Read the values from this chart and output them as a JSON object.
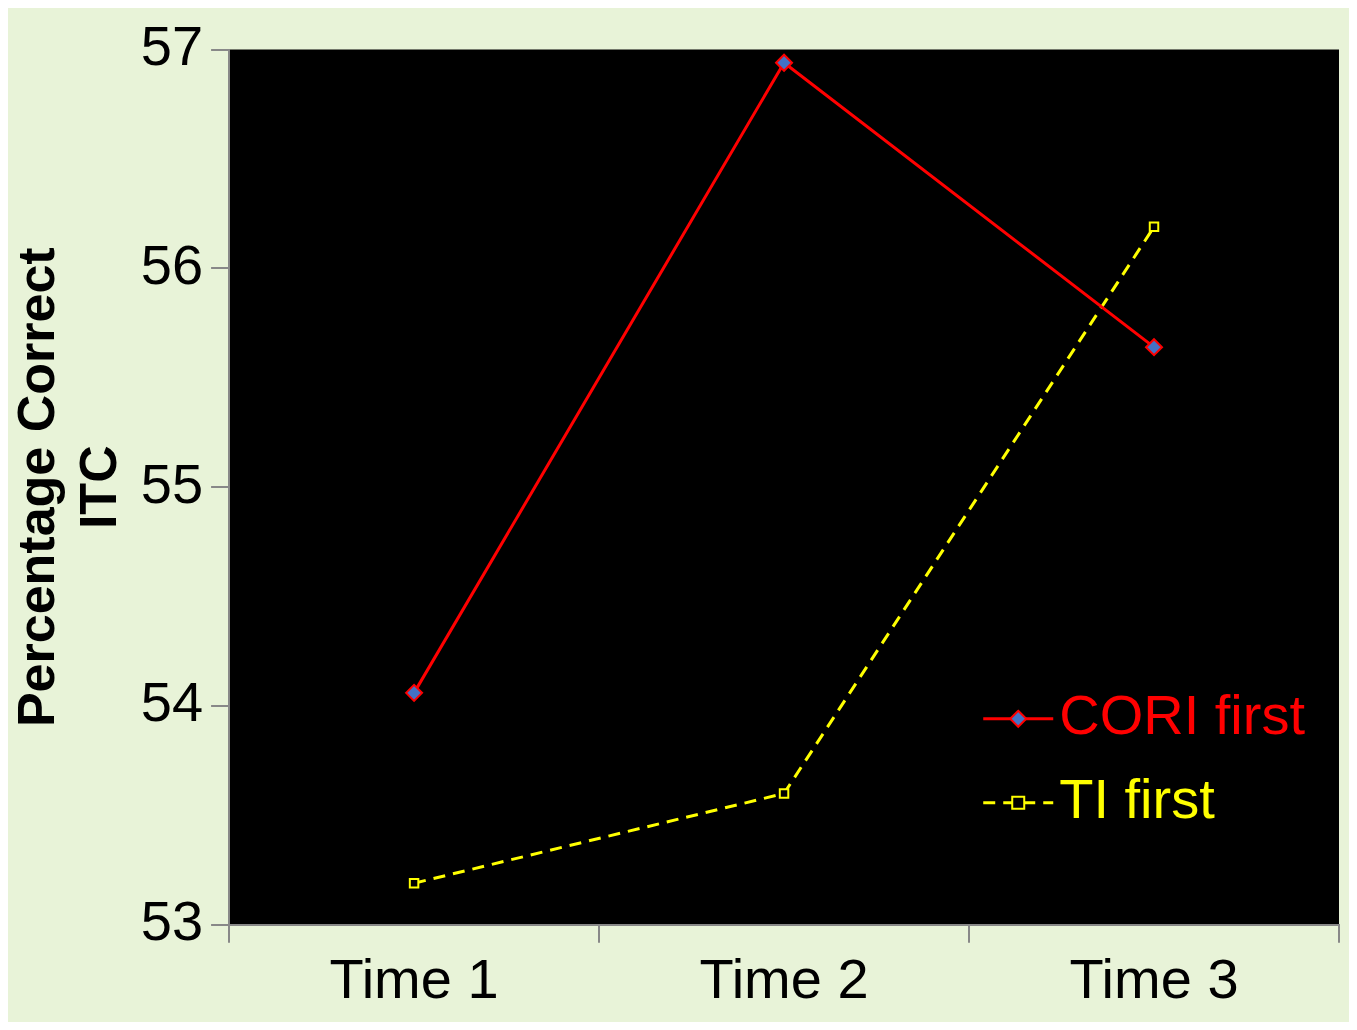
{
  "chart_data": {
    "type": "line",
    "ylabel": "Percentage Correct\nITC",
    "categories": [
      "Time 1",
      "Time 2",
      "Time 3"
    ],
    "series": [
      {
        "name": "CORI first",
        "color": "#ff0000",
        "values": [
          54.06,
          56.94,
          55.64
        ],
        "marker": "diamond",
        "line_style": "solid"
      },
      {
        "name": "TI first",
        "color": "#ffff00",
        "values": [
          53.19,
          53.6,
          56.19
        ],
        "marker": "square",
        "line_style": "dashed"
      }
    ],
    "ylim": [
      53,
      57
    ],
    "yticks": [
      53,
      54,
      55,
      56,
      57
    ],
    "grid": false,
    "legend": "bottom right"
  }
}
